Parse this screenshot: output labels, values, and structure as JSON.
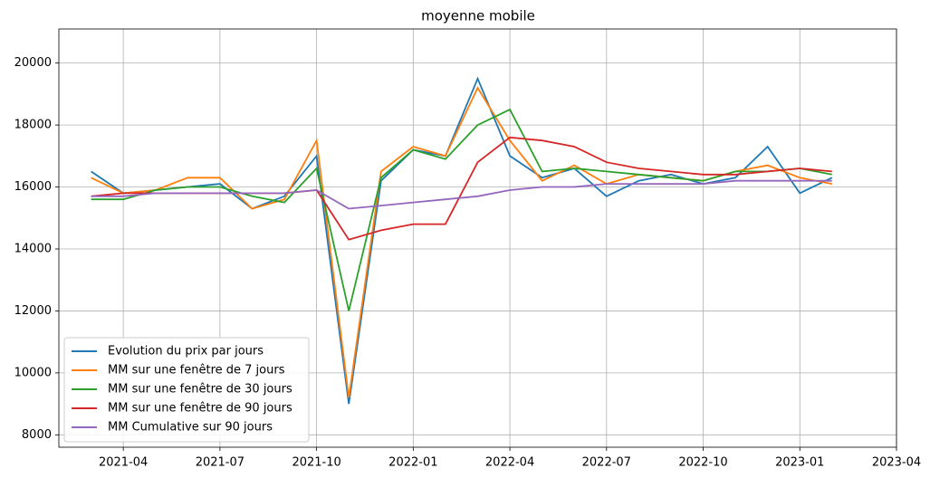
{
  "chart_data": {
    "type": "line",
    "title": "moyenne mobile",
    "x": [
      "2021-03",
      "2021-04",
      "2021-05",
      "2021-06",
      "2021-07",
      "2021-08",
      "2021-09",
      "2021-10",
      "2021-11",
      "2021-12",
      "2022-01",
      "2022-02",
      "2022-03",
      "2022-04",
      "2022-05",
      "2022-06",
      "2022-07",
      "2022-08",
      "2022-09",
      "2022-10",
      "2022-11",
      "2022-12",
      "2023-01",
      "2023-02"
    ],
    "series": [
      {
        "name": "Evolution du prix par jours",
        "color": "#1f77b4",
        "values": [
          16500,
          15800,
          15900,
          16000,
          16100,
          15300,
          15700,
          17000,
          9000,
          16200,
          17200,
          17000,
          19500,
          17000,
          16300,
          16600,
          15700,
          16200,
          16400,
          16100,
          16300,
          17300,
          15800,
          16300
        ]
      },
      {
        "name": "MM sur une fenêtre de 7 jours",
        "color": "#ff7f0e",
        "values": [
          16300,
          15800,
          15900,
          16300,
          16300,
          15300,
          15600,
          17500,
          9200,
          16500,
          17300,
          17000,
          19200,
          17500,
          16200,
          16700,
          16100,
          16400,
          16300,
          16200,
          16500,
          16700,
          16300,
          16100
        ]
      },
      {
        "name": "MM sur une fenêtre de 30 jours",
        "color": "#2ca02c",
        "values": [
          15600,
          15600,
          15900,
          16000,
          16000,
          15700,
          15500,
          16600,
          12000,
          16300,
          17200,
          16900,
          18000,
          18500,
          16500,
          16600,
          16500,
          16400,
          16300,
          16200,
          16500,
          16500,
          16600,
          16400
        ]
      },
      {
        "name": "MM sur une fenêtre de 90 jours",
        "color": "#d62728",
        "values": [
          15700,
          15800,
          15800,
          15800,
          15800,
          15800,
          15800,
          15900,
          14300,
          14600,
          14800,
          14800,
          16800,
          17600,
          17500,
          17300,
          16800,
          16600,
          16500,
          16400,
          16400,
          16500,
          16600,
          16500
        ]
      },
      {
        "name": "MM Cumulative sur 90 jours",
        "color": "#9467bd",
        "values": [
          15700,
          15700,
          15800,
          15800,
          15800,
          15800,
          15800,
          15900,
          15300,
          15400,
          15500,
          15600,
          15700,
          15900,
          16000,
          16000,
          16100,
          16100,
          16100,
          16100,
          16200,
          16200,
          16200,
          16200
        ]
      }
    ],
    "xlim": [
      "2021-02",
      "2023-04"
    ],
    "xticks": [
      "2021-04",
      "2021-07",
      "2021-10",
      "2022-01",
      "2022-04",
      "2022-07",
      "2022-10",
      "2023-01",
      "2023-04"
    ],
    "ylim": [
      7600,
      21100
    ],
    "yticks": [
      8000,
      10000,
      12000,
      14000,
      16000,
      18000,
      20000
    ],
    "grid": true,
    "legend": "lower left"
  }
}
